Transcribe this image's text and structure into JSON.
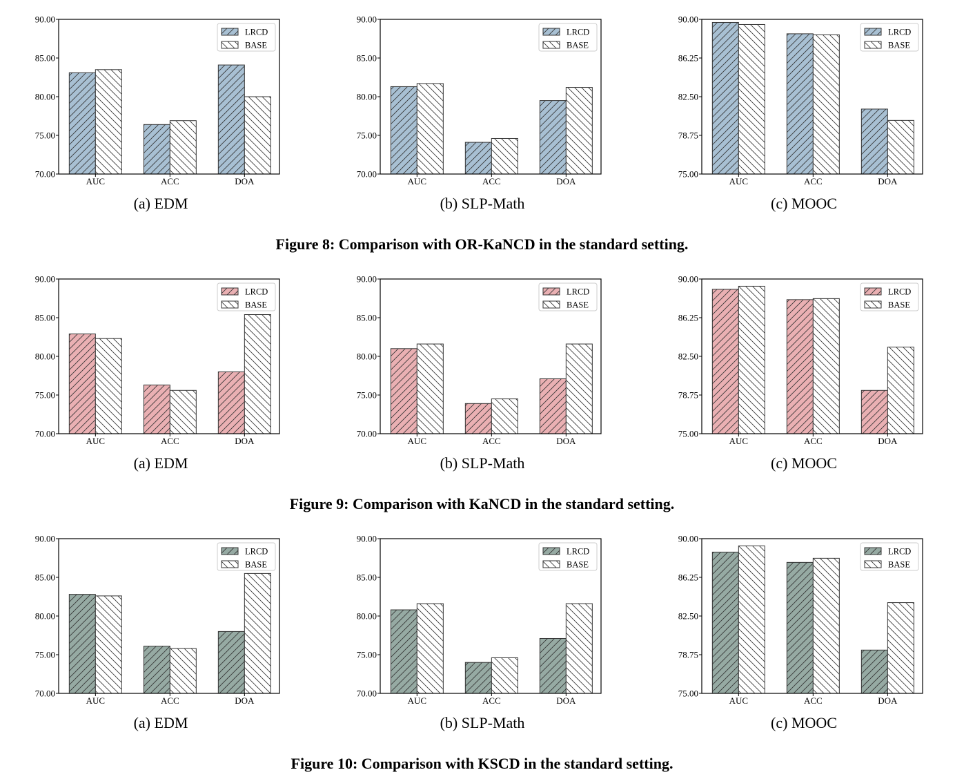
{
  "colors": {
    "edge": "#333333",
    "base_fill": "#ffffff"
  },
  "figures": [
    {
      "title": "Figure 8: Comparison with OR-KaNCD in the standard setting.",
      "lrcd_color": "#a8c0d3",
      "panels": [
        {
          "caption": "(a) EDM",
          "ylim": [
            70,
            90
          ],
          "yticks": [
            "70.00",
            "75.00",
            "80.00",
            "85.00",
            "90.00"
          ],
          "ytick_values": [
            70,
            75,
            80,
            85,
            90
          ]
        },
        {
          "caption": "(b) SLP-Math",
          "ylim": [
            70,
            90
          ],
          "yticks": [
            "70.00",
            "75.00",
            "80.00",
            "85.00",
            "90.00"
          ],
          "ytick_values": [
            70,
            75,
            80,
            85,
            90
          ]
        },
        {
          "caption": "(c) MOOC",
          "ylim": [
            75,
            90
          ],
          "yticks": [
            "75.00",
            "78.75",
            "82.50",
            "86.25",
            "90.00"
          ],
          "ytick_values": [
            75,
            78.75,
            82.5,
            86.25,
            90
          ]
        }
      ]
    },
    {
      "title": "Figure 9: Comparison with KaNCD in the standard setting.",
      "lrcd_color": "#eab0b3",
      "panels": [
        {
          "caption": "(a) EDM",
          "ylim": [
            70,
            90
          ],
          "yticks": [
            "70.00",
            "75.00",
            "80.00",
            "85.00",
            "90.00"
          ],
          "ytick_values": [
            70,
            75,
            80,
            85,
            90
          ]
        },
        {
          "caption": "(b) SLP-Math",
          "ylim": [
            70,
            90
          ],
          "yticks": [
            "70.00",
            "75.00",
            "80.00",
            "85.00",
            "90.00"
          ],
          "ytick_values": [
            70,
            75,
            80,
            85,
            90
          ]
        },
        {
          "caption": "(c) MOOC",
          "ylim": [
            75,
            90
          ],
          "yticks": [
            "75.00",
            "78.75",
            "82.50",
            "86.25",
            "90.00"
          ],
          "ytick_values": [
            75,
            78.75,
            82.5,
            86.25,
            90
          ]
        }
      ]
    },
    {
      "title": "Figure 10: Comparison with KSCD in the standard setting.",
      "lrcd_color": "#96aaa3",
      "panels": [
        {
          "caption": "(a) EDM",
          "ylim": [
            70,
            90
          ],
          "yticks": [
            "70.00",
            "75.00",
            "80.00",
            "85.00",
            "90.00"
          ],
          "ytick_values": [
            70,
            75,
            80,
            85,
            90
          ]
        },
        {
          "caption": "(b) SLP-Math",
          "ylim": [
            70,
            90
          ],
          "yticks": [
            "70.00",
            "75.00",
            "80.00",
            "85.00",
            "90.00"
          ],
          "ytick_values": [
            70,
            75,
            80,
            85,
            90
          ]
        },
        {
          "caption": "(c) MOOC",
          "ylim": [
            75,
            90
          ],
          "yticks": [
            "75.00",
            "78.75",
            "82.50",
            "86.25",
            "90.00"
          ],
          "ytick_values": [
            75,
            78.75,
            82.5,
            86.25,
            90
          ]
        }
      ]
    }
  ],
  "chart_data": [
    {
      "type": "bar",
      "title": "",
      "xlabel": "",
      "ylabel": "",
      "ylim": [
        70,
        90
      ],
      "categories": [
        "AUC",
        "ACC",
        "DOA"
      ],
      "legend": "top-right",
      "series": [
        {
          "name": "LRCD",
          "values": [
            83.1,
            76.4,
            84.1
          ]
        },
        {
          "name": "BASE",
          "values": [
            83.5,
            76.9,
            80.0
          ]
        }
      ]
    },
    {
      "type": "bar",
      "title": "",
      "xlabel": "",
      "ylabel": "",
      "ylim": [
        70,
        90
      ],
      "categories": [
        "AUC",
        "ACC",
        "DOA"
      ],
      "legend": "top-right",
      "series": [
        {
          "name": "LRCD",
          "values": [
            81.3,
            74.1,
            79.5
          ]
        },
        {
          "name": "BASE",
          "values": [
            81.7,
            74.6,
            81.2
          ]
        }
      ]
    },
    {
      "type": "bar",
      "title": "",
      "xlabel": "",
      "ylabel": "",
      "ylim": [
        75,
        90
      ],
      "categories": [
        "AUC",
        "ACC",
        "DOA"
      ],
      "legend": "top-right",
      "series": [
        {
          "name": "LRCD",
          "values": [
            89.7,
            88.6,
            81.3
          ]
        },
        {
          "name": "BASE",
          "values": [
            89.5,
            88.5,
            80.2
          ]
        }
      ]
    },
    {
      "type": "bar",
      "title": "",
      "xlabel": "",
      "ylabel": "",
      "ylim": [
        70,
        90
      ],
      "categories": [
        "AUC",
        "ACC",
        "DOA"
      ],
      "legend": "top-right",
      "series": [
        {
          "name": "LRCD",
          "values": [
            82.9,
            76.3,
            78.0
          ]
        },
        {
          "name": "BASE",
          "values": [
            82.3,
            75.6,
            85.4
          ]
        }
      ]
    },
    {
      "type": "bar",
      "title": "",
      "xlabel": "",
      "ylabel": "",
      "ylim": [
        70,
        90
      ],
      "categories": [
        "AUC",
        "ACC",
        "DOA"
      ],
      "legend": "top-right",
      "series": [
        {
          "name": "LRCD",
          "values": [
            81.0,
            73.9,
            77.1
          ]
        },
        {
          "name": "BASE",
          "values": [
            81.6,
            74.5,
            81.6
          ]
        }
      ]
    },
    {
      "type": "bar",
      "title": "",
      "xlabel": "",
      "ylabel": "",
      "ylim": [
        75,
        90
      ],
      "categories": [
        "AUC",
        "ACC",
        "DOA"
      ],
      "legend": "top-right",
      "series": [
        {
          "name": "LRCD",
          "values": [
            89.0,
            88.0,
            79.2
          ]
        },
        {
          "name": "BASE",
          "values": [
            89.3,
            88.1,
            83.4
          ]
        }
      ]
    },
    {
      "type": "bar",
      "title": "",
      "xlabel": "",
      "ylabel": "",
      "ylim": [
        70,
        90
      ],
      "categories": [
        "AUC",
        "ACC",
        "DOA"
      ],
      "legend": "top-right",
      "series": [
        {
          "name": "LRCD",
          "values": [
            82.8,
            76.1,
            78.0
          ]
        },
        {
          "name": "BASE",
          "values": [
            82.6,
            75.8,
            85.5
          ]
        }
      ]
    },
    {
      "type": "bar",
      "title": "",
      "xlabel": "",
      "ylabel": "",
      "ylim": [
        70,
        90
      ],
      "categories": [
        "AUC",
        "ACC",
        "DOA"
      ],
      "legend": "top-right",
      "series": [
        {
          "name": "LRCD",
          "values": [
            80.8,
            74.0,
            77.1
          ]
        },
        {
          "name": "BASE",
          "values": [
            81.6,
            74.6,
            81.6
          ]
        }
      ]
    },
    {
      "type": "bar",
      "title": "",
      "xlabel": "",
      "ylabel": "",
      "ylim": [
        75,
        90
      ],
      "categories": [
        "AUC",
        "ACC",
        "DOA"
      ],
      "legend": "top-right",
      "series": [
        {
          "name": "LRCD",
          "values": [
            88.7,
            87.7,
            79.2
          ]
        },
        {
          "name": "BASE",
          "values": [
            89.3,
            88.1,
            83.8
          ]
        }
      ]
    }
  ]
}
